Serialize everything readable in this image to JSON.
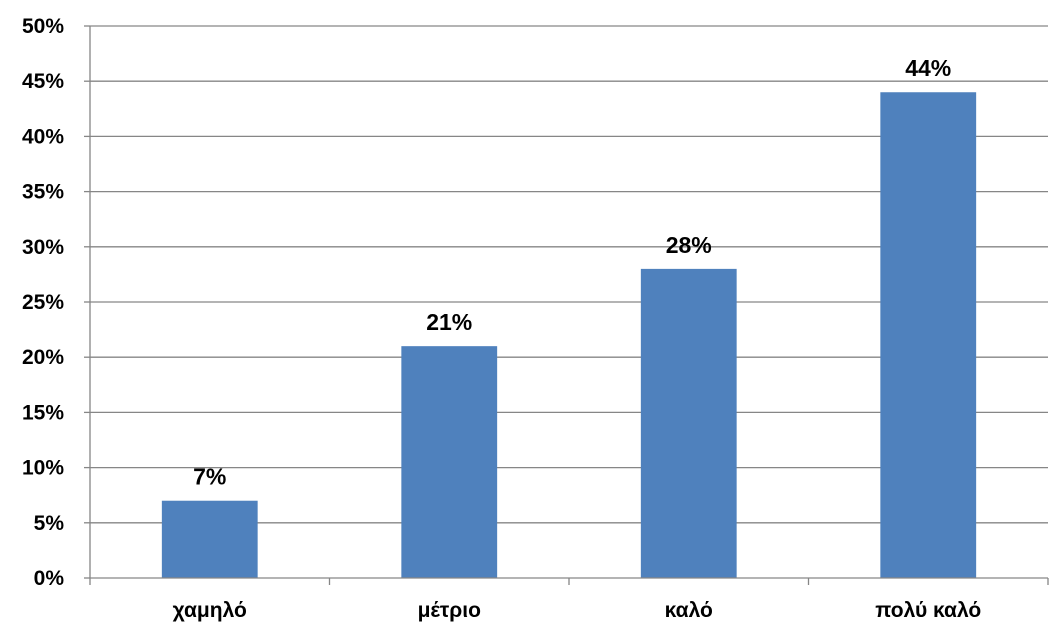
{
  "chart_data": {
    "type": "bar",
    "categories": [
      "χαμηλό",
      "μέτριο",
      "καλό",
      "πολύ καλό"
    ],
    "values": [
      7,
      21,
      28,
      44
    ],
    "data_labels": [
      "7%",
      "21%",
      "28%",
      "44%"
    ],
    "ylim": [
      0,
      50
    ],
    "ytick_values": [
      0,
      5,
      10,
      15,
      20,
      25,
      30,
      35,
      40,
      45,
      50
    ],
    "ytick_labels": [
      "0%",
      "5%",
      "10%",
      "15%",
      "20%",
      "25%",
      "30%",
      "35%",
      "40%",
      "45%",
      "50%"
    ],
    "grid": true,
    "legend": "none",
    "title": "",
    "xlabel": "",
    "ylabel": "",
    "colors": {
      "bar": "#4f81bd",
      "grid": "#868686",
      "axis": "#868686"
    }
  }
}
